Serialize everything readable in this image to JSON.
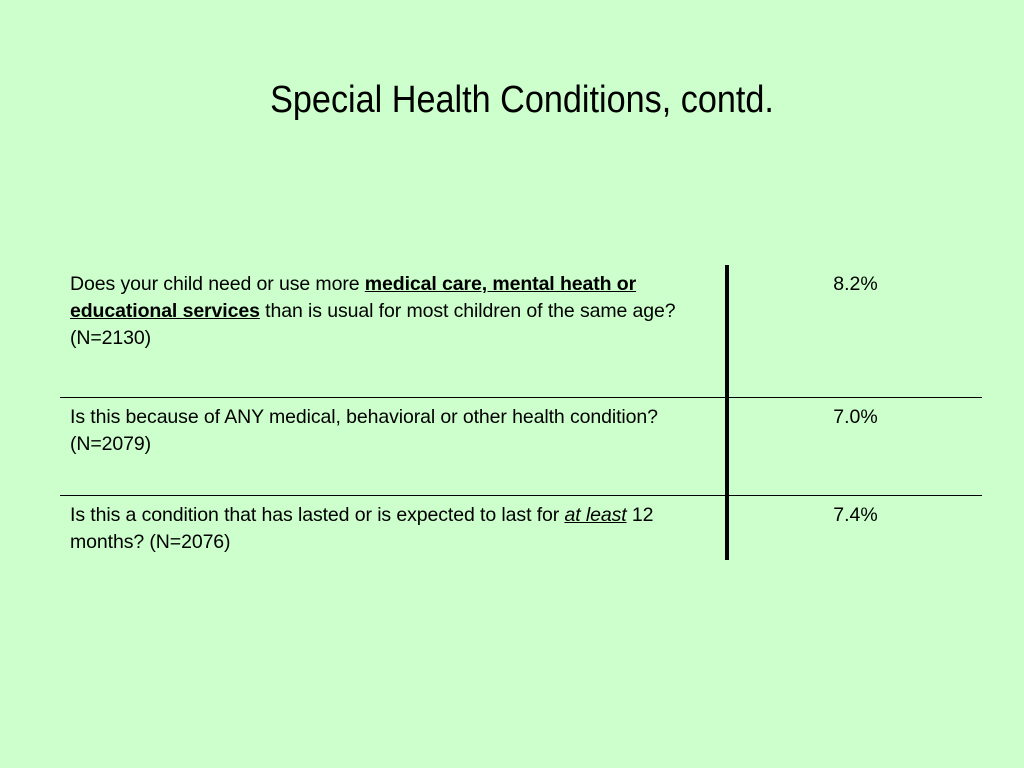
{
  "title": "Special Health Conditions, contd.",
  "rows": [
    {
      "question_pre": "Does your child need or use more ",
      "question_bold": "medical care, mental heath or educational services",
      "question_post": " than is usual for most children of the same age? (N=2130)",
      "value": "8.2%"
    },
    {
      "question": "Is this because of ANY medical, behavioral or other health condition? (N=2079)",
      "value": "7.0%"
    },
    {
      "question_pre": "Is this a condition that has lasted or is expected to last for ",
      "question_em": "at least",
      "question_post": " 12 months? (N=2076)",
      "value": "7.4%"
    }
  ]
}
